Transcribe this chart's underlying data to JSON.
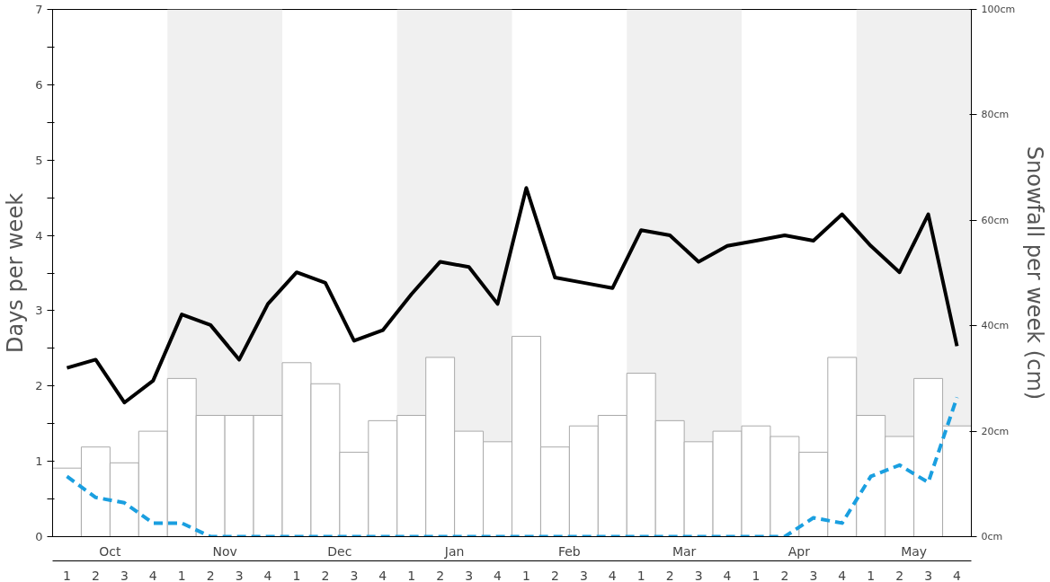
{
  "chart_data": {
    "type": "bar",
    "ylabel": "Days per week",
    "y2label": "Snowfall per week (cm)",
    "categories": [
      "1",
      "2",
      "3",
      "4",
      "1",
      "2",
      "3",
      "4",
      "1",
      "2",
      "3",
      "4",
      "1",
      "2",
      "3",
      "4",
      "1",
      "2",
      "3",
      "4",
      "1",
      "2",
      "3",
      "4",
      "1",
      "2",
      "3",
      "4",
      "1",
      "2",
      "3",
      "4"
    ],
    "annotations": [
      "Oct",
      "Nov",
      "Dec",
      "Jan",
      "Feb",
      "Mar",
      "Apr",
      "May"
    ],
    "series": [
      {
        "axis": "y2",
        "color": "#ffffff",
        "values": [
          13,
          17,
          14,
          20,
          30,
          23,
          23,
          23,
          33,
          29,
          16,
          22,
          23,
          34,
          20,
          18,
          38,
          17,
          21,
          23,
          31,
          22,
          18,
          20,
          21,
          19,
          16,
          34,
          23,
          19,
          30,
          21
        ]
      },
      {
        "type": "line",
        "axis": "y",
        "color": "#000000",
        "line_style": "solid",
        "values": [
          2.24,
          2.35,
          1.78,
          2.07,
          2.95,
          2.81,
          2.35,
          3.09,
          3.51,
          3.37,
          2.6,
          2.74,
          3.22,
          3.65,
          3.58,
          3.09,
          4.63,
          3.44,
          3.37,
          3.3,
          4.07,
          4.0,
          3.65,
          3.86,
          3.93,
          4.0,
          3.93,
          4.28,
          3.86,
          3.51,
          4.28,
          2.53
        ]
      },
      {
        "type": "line",
        "axis": "y",
        "color": "#1a9fe0",
        "line_style": "dashed",
        "values": [
          0.8,
          0.52,
          0.45,
          0.18,
          0.18,
          0,
          0,
          0,
          0,
          0,
          0,
          0,
          0,
          0,
          0,
          0,
          0,
          0,
          0,
          0,
          0,
          0,
          0,
          0,
          0,
          0,
          0.25,
          0.18,
          0.8,
          0.95,
          0.72,
          1.85
        ]
      }
    ],
    "ylim": [
      0,
      7
    ],
    "yticks": [
      0,
      {
        "value": 0.5,
        "label": null
      },
      1,
      {
        "value": 1.5,
        "label": null
      },
      2,
      {
        "value": 2.5,
        "label": null
      },
      3,
      {
        "value": 3.5,
        "label": null
      },
      4,
      {
        "value": 4.5,
        "label": null
      },
      5,
      {
        "value": 5.5,
        "label": null
      },
      6,
      {
        "value": 6.5,
        "label": null
      },
      7
    ],
    "y2lim": [
      0,
      100
    ],
    "y2ticks": [
      {
        "value": 0,
        "label": "0cm"
      },
      {
        "value": 20,
        "label": "20cm"
      },
      {
        "value": 40,
        "label": "40cm"
      },
      {
        "value": 60,
        "label": "60cm"
      },
      {
        "value": 80,
        "label": "80cm"
      },
      {
        "value": 100,
        "label": "100cm"
      }
    ],
    "grid": false
  }
}
